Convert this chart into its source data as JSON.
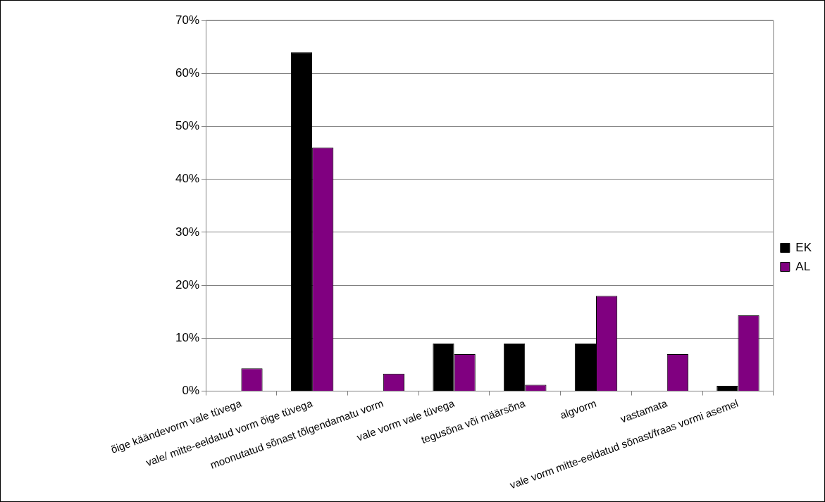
{
  "chart_data": {
    "type": "bar",
    "categories": [
      "õige käändevorm vale tüvega",
      "vale/ mitte-eeldatud vorm õige tüvega",
      "moonutatud sõnast tõlgendamatu vorm",
      "vale vorm vale tüvega",
      "tegusõna või määrsõna",
      "algvorm",
      "vastamata",
      "vale vorm mitte-eeldatud sõnast/fraas vormi asemel"
    ],
    "series": [
      {
        "name": "EK",
        "color": "#000000",
        "values": [
          0,
          64,
          0,
          9,
          9,
          9,
          0,
          1
        ]
      },
      {
        "name": "AL",
        "color": "#800080",
        "values": [
          4.3,
          46,
          3.3,
          7,
          1.2,
          18,
          7,
          14.3
        ]
      }
    ],
    "ylim": [
      0,
      70
    ],
    "yticks": [
      {
        "value": 0,
        "label": "0%"
      },
      {
        "value": 10,
        "label": "10%"
      },
      {
        "value": 20,
        "label": "20%"
      },
      {
        "value": 30,
        "label": "30%"
      },
      {
        "value": 40,
        "label": "40%"
      },
      {
        "value": 50,
        "label": "50%"
      },
      {
        "value": 60,
        "label": "60%"
      },
      {
        "value": 70,
        "label": "70%"
      }
    ],
    "grid": "y",
    "legend": "right"
  }
}
